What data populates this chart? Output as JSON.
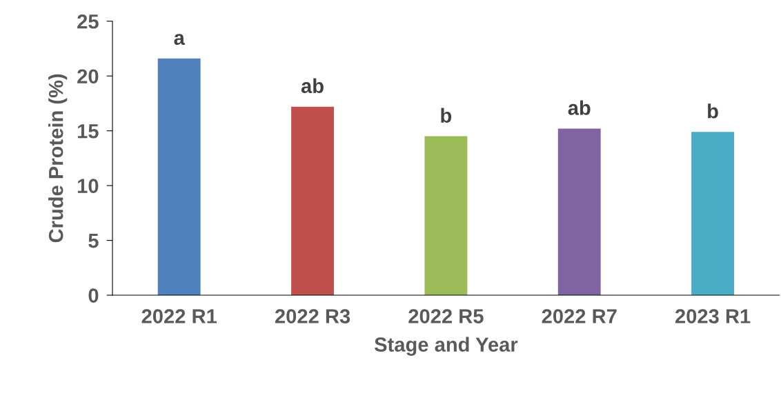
{
  "chart_data": {
    "type": "bar",
    "xlabel": "Stage and Year",
    "ylabel": "Crude Protein (%)",
    "categories": [
      "2022 R1",
      "2022 R3",
      "2022 R5",
      "2022 R7",
      "2023 R1"
    ],
    "values": [
      21.6,
      17.2,
      14.5,
      15.2,
      14.9
    ],
    "colors": [
      "#4f81bd",
      "#c0504d",
      "#9bbb59",
      "#8064a2",
      "#4bacc6"
    ],
    "ylim": [
      0,
      25
    ],
    "yticks": [
      0,
      5,
      10,
      15,
      20,
      25
    ],
    "grid": false,
    "legend": false,
    "annotations": [
      {
        "text": "a",
        "x": "2022 R1",
        "y": 21.6
      },
      {
        "text": "ab",
        "x": "2022 R3",
        "y": 17.2
      },
      {
        "text": "b",
        "x": "2022 R5",
        "y": 14.5
      },
      {
        "text": "ab",
        "x": "2022 R7",
        "y": 15.2
      },
      {
        "text": "b",
        "x": "2023 R1",
        "y": 14.9
      }
    ]
  }
}
